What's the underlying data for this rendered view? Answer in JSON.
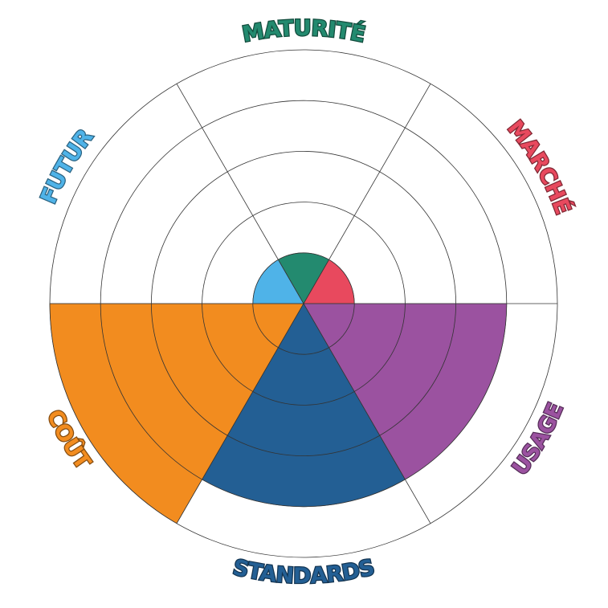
{
  "chart_data": {
    "type": "polar",
    "categories": [
      "MATURITÉ",
      "MARCHÉ",
      "USAGE",
      "STANDARDS",
      "COÛT",
      "FUTUR"
    ],
    "values": [
      1,
      1,
      4,
      4,
      5,
      1
    ],
    "colors": [
      "#238a6f",
      "#e8495e",
      "#9b52a0",
      "#235f94",
      "#f28c1f",
      "#4fb3e8"
    ],
    "rlim": [
      0,
      5
    ],
    "rticks": [
      1,
      2,
      3,
      4,
      5
    ],
    "grid": true
  }
}
